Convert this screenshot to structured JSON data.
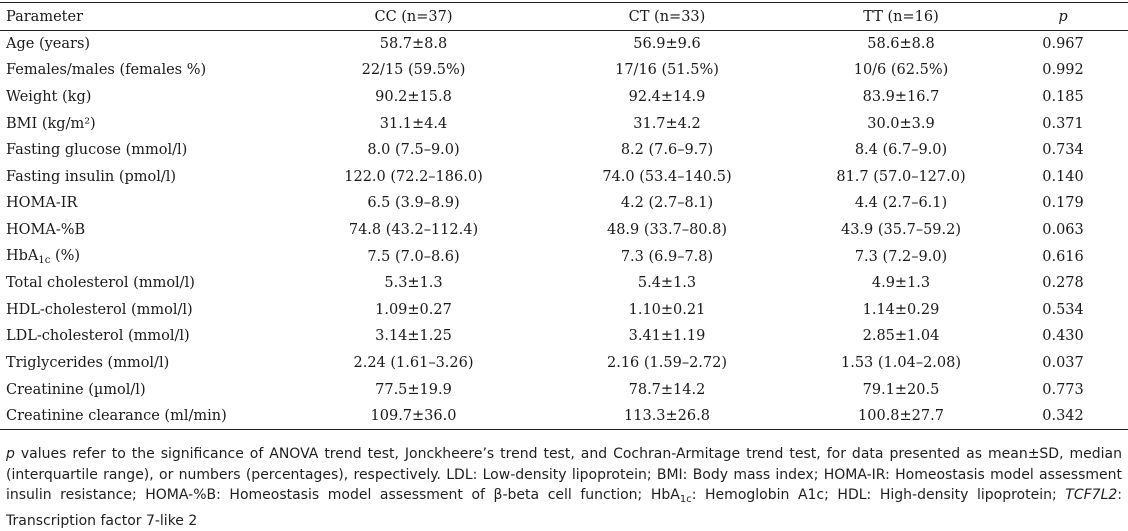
{
  "table": {
    "headers": {
      "parameter": "Parameter",
      "cc": "CC (n=37)",
      "ct": "CT (n=33)",
      "tt": "TT (n=16)",
      "p": "p"
    },
    "rows": [
      {
        "parameter": "Age (years)",
        "cc": "58.7±8.8",
        "ct": "56.9±9.6",
        "tt": "58.6±8.8",
        "p": "0.967"
      },
      {
        "parameter": "Females/males (females %)",
        "cc": "22/15 (59.5%)",
        "ct": "17/16 (51.5%)",
        "tt": "10/6 (62.5%)",
        "p": "0.992"
      },
      {
        "parameter": "Weight (kg)",
        "cc": "90.2±15.8",
        "ct": "92.4±14.9",
        "tt": "83.9±16.7",
        "p": "0.185"
      },
      {
        "parameter": "BMI (kg/m²)",
        "cc": "31.1±4.4",
        "ct": "31.7±4.2",
        "tt": "30.0±3.9",
        "p": "0.371"
      },
      {
        "parameter": "Fasting glucose (mmol/l)",
        "cc": "8.0 (7.5–9.0)",
        "ct": "8.2 (7.6–9.7)",
        "tt": "8.4 (6.7–9.0)",
        "p": "0.734"
      },
      {
        "parameter": "Fasting insulin (pmol/l)",
        "cc": "122.0 (72.2–186.0)",
        "ct": "74.0 (53.4–140.5)",
        "tt": "81.7 (57.0–127.0)",
        "p": "0.140"
      },
      {
        "parameter": "HOMA-IR",
        "cc": "6.5 (3.9–8.9)",
        "ct": "4.2 (2.7–8.1)",
        "tt": "4.4 (2.7–6.1)",
        "p": "0.179"
      },
      {
        "parameter": "HOMA-%B",
        "cc": "74.8 (43.2–112.4)",
        "ct": "48.9 (33.7–80.8)",
        "tt": "43.9 (35.7–59.2)",
        "p": "0.063"
      },
      {
        "parameter_main": "HbA",
        "parameter_sub": "1c",
        "parameter_rest": " (%)",
        "cc": "7.5 (7.0–8.6)",
        "ct": "7.3 (6.9–7.8)",
        "tt": "7.3 (7.2–9.0)",
        "p": "0.616"
      },
      {
        "parameter": "Total cholesterol (mmol/l)",
        "cc": "5.3±1.3",
        "ct": "5.4±1.3",
        "tt": "4.9±1.3",
        "p": "0.278"
      },
      {
        "parameter": "HDL-cholesterol (mmol/l)",
        "cc": "1.09±0.27",
        "ct": "1.10±0.21",
        "tt": "1.14±0.29",
        "p": "0.534"
      },
      {
        "parameter": "LDL-cholesterol (mmol/l)",
        "cc": "3.14±1.25",
        "ct": "3.41±1.19",
        "tt": "2.85±1.04",
        "p": "0.430"
      },
      {
        "parameter": "Triglycerides (mmol/l)",
        "cc": "2.24 (1.61–3.26)",
        "ct": "2.16 (1.59–2.72)",
        "tt": "1.53 (1.04–2.08)",
        "p": "0.037"
      },
      {
        "parameter": "Creatinine (µmol/l)",
        "cc": "77.5±19.9",
        "ct": "78.7±14.2",
        "tt": "79.1±20.5",
        "p": "0.773"
      },
      {
        "parameter": "Creatinine clearance (ml/min)",
        "cc": "109.7±36.0",
        "ct": "113.3±26.8",
        "tt": "100.8±27.7",
        "p": "0.342"
      }
    ]
  },
  "notes": {
    "p_symbol": "p",
    "part1": " values refer to the significance of ANOVA trend test, Jonckheere’s trend test, and Cochran-Armitage trend test, for data presented as mean±SD, median (interquartile range), or numbers (percentages), respectively. LDL: Low-density lipoprotein; BMI: Body mass index; HOMA-IR: Homeostasis model assessment insulin resistance; HOMA-%B: Homeostasis model assessment of β-beta cell function; HbA",
    "hba_sub": "1c",
    "part2": ": Hemoglobin A1c; HDL: High-density lipoprotein; ",
    "gene": "TCF7L2",
    "part3": ": Transcription factor 7-like 2"
  }
}
